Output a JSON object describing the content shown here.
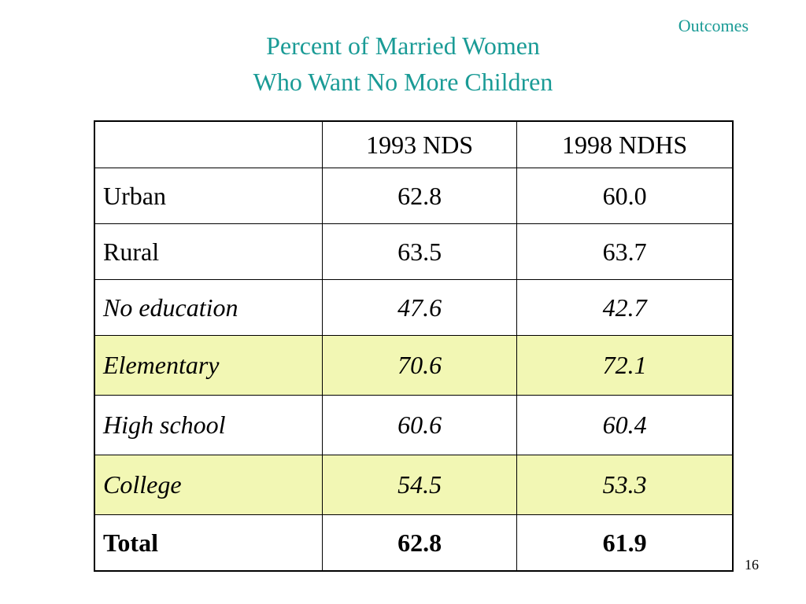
{
  "slide": {
    "section_label": "Outcomes",
    "title_line1": "Percent of Married Women",
    "title_line2": "Who Want No More Children",
    "page_number": "16",
    "accent_color": "#1a9b96",
    "highlight_color": "#f2f7b4"
  },
  "table": {
    "headers": [
      "",
      "1993 NDS",
      "1998 NDHS"
    ],
    "rows": [
      {
        "label": "Urban",
        "v1993": "62.8",
        "v1998": "60.0"
      },
      {
        "label": "Rural",
        "v1993": "63.5",
        "v1998": "63.7"
      },
      {
        "label": "No education",
        "v1993": "47.6",
        "v1998": "42.7"
      },
      {
        "label": "Elementary",
        "v1993": "70.6",
        "v1998": "72.1"
      },
      {
        "label": "High school",
        "v1993": "60.6",
        "v1998": "60.4"
      },
      {
        "label": "College",
        "v1993": "54.5",
        "v1998": "53.3"
      },
      {
        "label": "Total",
        "v1993": "62.8",
        "v1998": "61.9"
      }
    ]
  }
}
